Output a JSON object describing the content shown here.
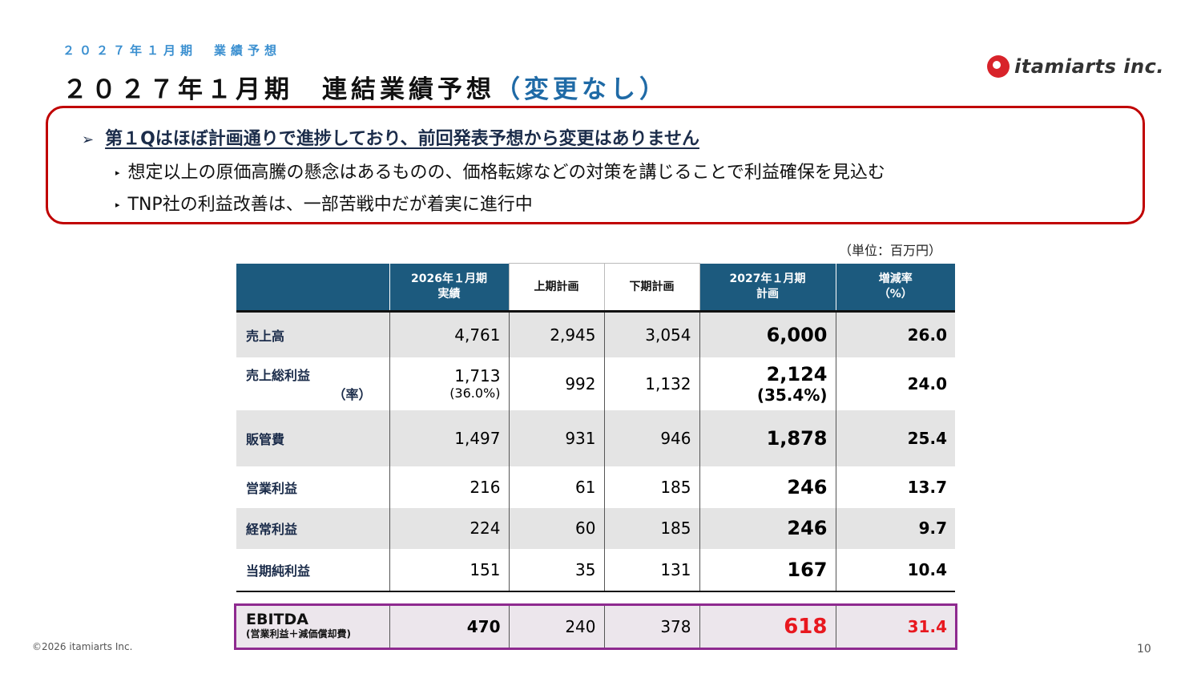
{
  "header": {
    "kicker": "２０２７年１月期　業績予想",
    "title_main": "２０２７年１月期　連結業績予想",
    "title_accent": "（変更なし）"
  },
  "logo": {
    "wordmark": "itamiarts inc.",
    "icon": "itamiarts-logo-mark"
  },
  "callout": {
    "heading": "第１Qはほぼ計画通りで進捗しており、前回発表予想から変更はありません",
    "bullets": [
      "想定以上の原価高騰の懸念はあるものの、価格転嫁などの対策を講じることで利益確保を見込む",
      "TNP社の利益改善は、一部苦戦中だが着実に進行中"
    ]
  },
  "unit_note": "（単位：百万円）",
  "table": {
    "headers": [
      {
        "line1": "",
        "line2": ""
      },
      {
        "line1": "2026年１月期",
        "line2": "実績"
      },
      {
        "line1": "上期計画",
        "line2": ""
      },
      {
        "line1": "下期計画",
        "line2": ""
      },
      {
        "line1": "2027年１月期",
        "line2": "計画"
      },
      {
        "line1": "増減率",
        "line2": "（%）"
      }
    ],
    "rows": [
      {
        "label": "売上高",
        "actual": "4,761",
        "h1": "2,945",
        "h2": "3,054",
        "plan": "6,000",
        "rate": "26.0"
      },
      {
        "label": "売上総利益",
        "label_sub": "（率）",
        "actual": "1,713",
        "actual_sub": "(36.0%)",
        "h1": "992",
        "h2": "1,132",
        "plan": "2,124",
        "plan_sub": "(35.4%)",
        "rate": "24.0"
      },
      {
        "label": "販管費",
        "actual": "1,497",
        "h1": "931",
        "h2": "946",
        "plan": "1,878",
        "rate": "25.4"
      },
      {
        "label": "営業利益",
        "actual": "216",
        "h1": "61",
        "h2": "185",
        "plan": "246",
        "rate": "13.7"
      },
      {
        "label": "経常利益",
        "actual": "224",
        "h1": "60",
        "h2": "185",
        "plan": "246",
        "rate": "9.7"
      },
      {
        "label": "当期純利益",
        "actual": "151",
        "h1": "35",
        "h2": "131",
        "plan": "167",
        "rate": "10.4"
      }
    ],
    "ebitda": {
      "label": "EBITDA",
      "note": "(営業利益＋減価償却費)",
      "actual": "470",
      "h1": "240",
      "h2": "378",
      "plan": "618",
      "rate": "31.4"
    }
  },
  "footer": {
    "copyright": "©2026 itamiarts Inc.",
    "page": "10"
  },
  "colors": {
    "header_bg": "#1c5a7e",
    "callout_border": "#c00000",
    "ebitda_border": "#8e2a8f",
    "ebitda_value": "#e8181f",
    "kicker": "#3a8fd0"
  }
}
